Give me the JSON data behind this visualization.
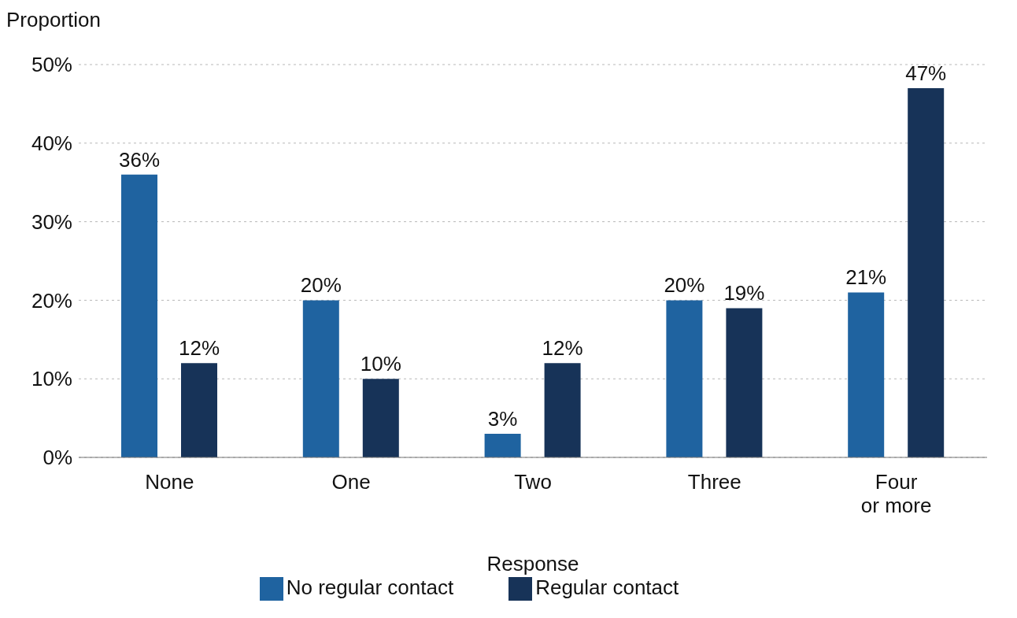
{
  "chart_data": {
    "type": "bar",
    "ylabel": "Proportion",
    "xlabel": "Response",
    "categories": [
      "None",
      "One",
      "Two",
      "Three",
      "Four\nor more"
    ],
    "series": [
      {
        "name": "No regular contact",
        "color": "#1f63a0",
        "values": [
          36,
          20,
          3,
          20,
          21
        ],
        "value_labels": [
          "36%",
          "20%",
          "3%",
          "20%",
          "21%"
        ]
      },
      {
        "name": "Regular contact",
        "color": "#173358",
        "values": [
          12,
          10,
          12,
          19,
          47
        ],
        "value_labels": [
          "12%",
          "10%",
          "12%",
          "19%",
          "47%"
        ]
      }
    ],
    "ylim": [
      0,
      50
    ],
    "yticks": [
      {
        "value": 0,
        "label": "0%"
      },
      {
        "value": 10,
        "label": "10%"
      },
      {
        "value": 20,
        "label": "20%"
      },
      {
        "value": 30,
        "label": "30%"
      },
      {
        "value": 40,
        "label": "40%"
      },
      {
        "value": 50,
        "label": "50%"
      }
    ],
    "grid": "y",
    "legend": "bottom"
  }
}
